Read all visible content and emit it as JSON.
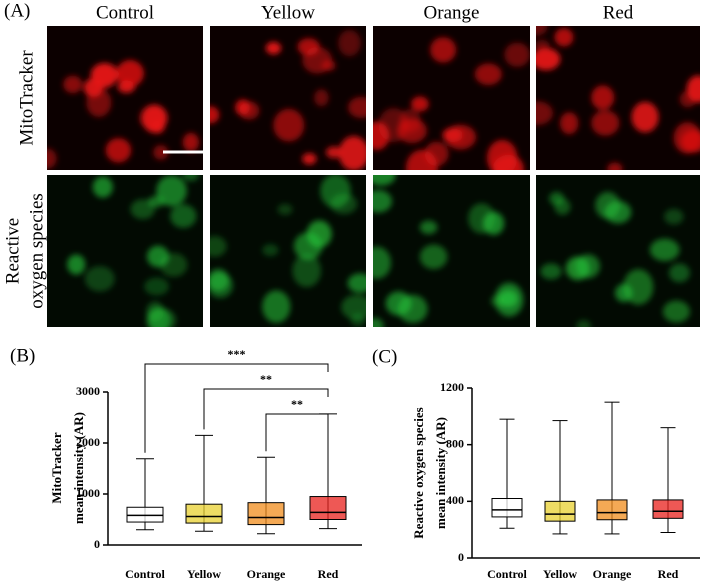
{
  "panel_a": {
    "label": "(A)",
    "columns": [
      "Control",
      "Yellow",
      "Orange",
      "Red"
    ],
    "rows": [
      [
        "MitoTracker"
      ],
      [
        "Reactive",
        "oxygen species"
      ]
    ]
  },
  "chart_data": [
    {
      "type": "box",
      "label": "(B)",
      "ylabel": [
        "MitoTracker",
        "mean intensity (AR)"
      ],
      "categories": [
        "Control",
        "Yellow",
        "Orange",
        "Red"
      ],
      "colors": [
        "#ffffff",
        "#e8d030",
        "#f08c1c",
        "#e8201c"
      ],
      "boxes": [
        {
          "min": 300,
          "q1": 450,
          "median": 580,
          "q3": 740,
          "max": 1690
        },
        {
          "min": 270,
          "q1": 430,
          "median": 560,
          "q3": 800,
          "max": 2150
        },
        {
          "min": 220,
          "q1": 400,
          "median": 540,
          "q3": 830,
          "max": 1720
        },
        {
          "min": 320,
          "q1": 500,
          "median": 640,
          "q3": 950,
          "max": 2570
        }
      ],
      "ylim": [
        0,
        3000
      ],
      "yticks": [
        0,
        1000,
        2000,
        3000
      ],
      "annotations": [
        "***",
        "**",
        "**"
      ]
    },
    {
      "type": "box",
      "label": "(C)",
      "ylabel": [
        "Reactive oxygen species",
        "mean intensity (AR)"
      ],
      "categories": [
        "Control",
        "Yellow",
        "Orange",
        "Red"
      ],
      "colors": [
        "#ffffff",
        "#e8d030",
        "#f08c1c",
        "#e8201c"
      ],
      "boxes": [
        {
          "min": 210,
          "q1": 290,
          "median": 340,
          "q3": 420,
          "max": 980
        },
        {
          "min": 170,
          "q1": 260,
          "median": 310,
          "q3": 400,
          "max": 970
        },
        {
          "min": 170,
          "q1": 270,
          "median": 320,
          "q3": 410,
          "max": 1100
        },
        {
          "min": 180,
          "q1": 280,
          "median": 330,
          "q3": 410,
          "max": 920
        }
      ],
      "ylim": [
        0,
        1200
      ],
      "yticks": [
        0,
        400,
        800,
        1200
      ]
    }
  ]
}
